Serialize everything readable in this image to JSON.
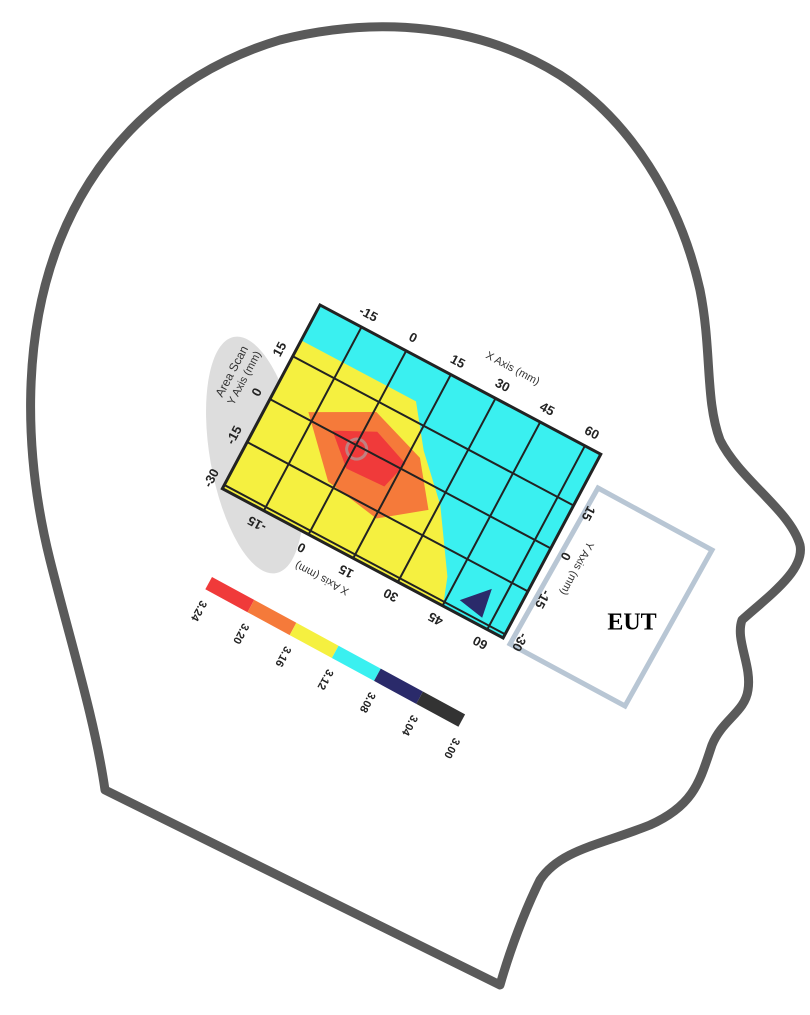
{
  "scan": {
    "title": "Area Scan",
    "x_axis_label": "X Axis (mm)",
    "y_axis_label": "Y Axis (mm)",
    "x_ticks": [
      "-15",
      "0",
      "15",
      "30",
      "45",
      "60"
    ],
    "y_ticks": [
      "15",
      "0",
      "-15",
      "-30"
    ]
  },
  "legend": {
    "labels": [
      "3.24",
      "3.20",
      "3.16",
      "3.12",
      "3.08",
      "3.04",
      "3.00"
    ]
  },
  "eut_label": "EUT"
}
